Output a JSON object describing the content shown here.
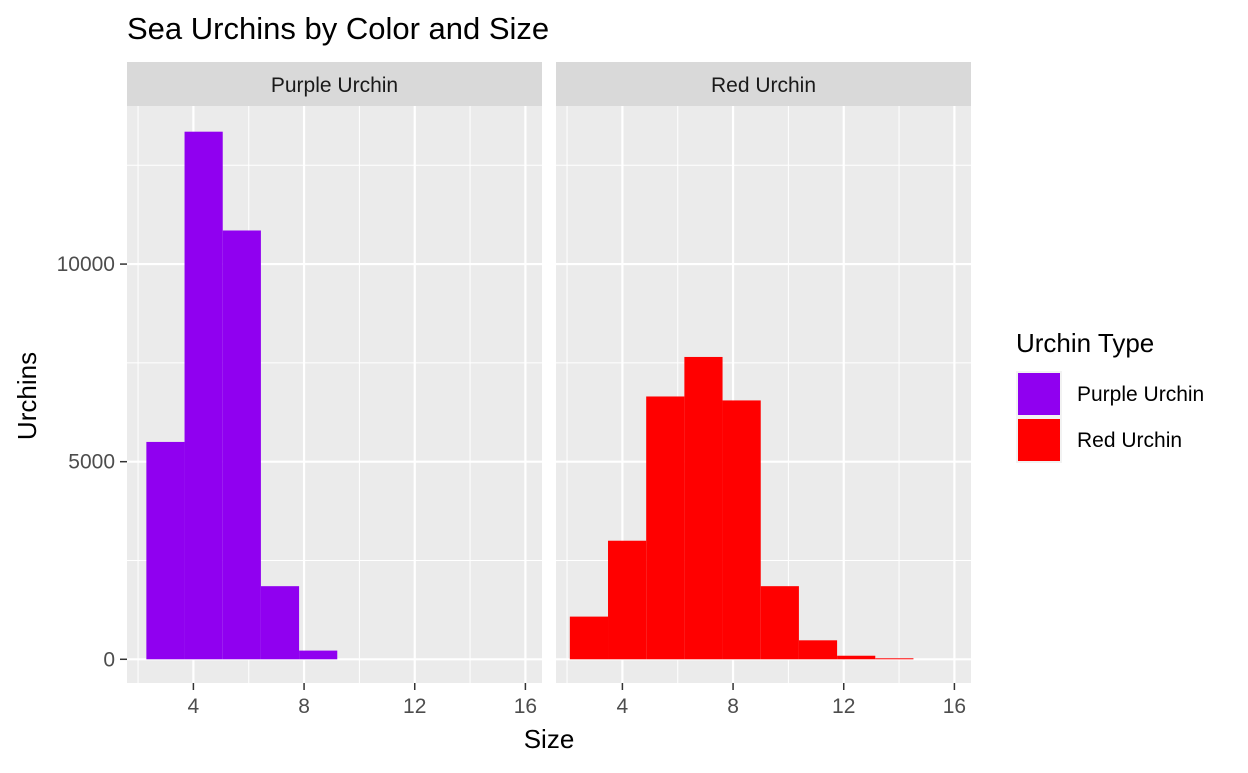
{
  "chart_data": {
    "type": "bar",
    "title": "Sea Urchins by Color and Size",
    "xlabel": "Size",
    "ylabel": "Urchins",
    "xlim": [
      1.6,
      16.6
    ],
    "ylim": [
      -600,
      14000
    ],
    "x_ticks": [
      4,
      8,
      12,
      16
    ],
    "y_ticks": [
      0,
      5000,
      10000
    ],
    "grid": true,
    "legend": {
      "title": "Urchin Type",
      "position": "right",
      "entries": [
        {
          "label": "Purple Urchin",
          "color": "#9000f0"
        },
        {
          "label": "Red Urchin",
          "color": "#ff0000"
        }
      ]
    },
    "panels": [
      {
        "strip": "Purple Urchin",
        "color": "#9000f0",
        "bins": [
          {
            "x0": 2.3,
            "x1": 3.68,
            "count": 5500
          },
          {
            "x0": 3.68,
            "x1": 5.06,
            "count": 13350
          },
          {
            "x0": 5.06,
            "x1": 6.44,
            "count": 10850
          },
          {
            "x0": 6.44,
            "x1": 7.82,
            "count": 1850
          },
          {
            "x0": 7.82,
            "x1": 9.2,
            "count": 220
          }
        ]
      },
      {
        "strip": "Red Urchin",
        "color": "#ff0000",
        "bins": [
          {
            "x0": 2.1,
            "x1": 3.48,
            "count": 1080
          },
          {
            "x0": 3.48,
            "x1": 4.86,
            "count": 3000
          },
          {
            "x0": 4.86,
            "x1": 6.24,
            "count": 6650
          },
          {
            "x0": 6.24,
            "x1": 7.62,
            "count": 7650
          },
          {
            "x0": 7.62,
            "x1": 9.0,
            "count": 6550
          },
          {
            "x0": 9.0,
            "x1": 10.38,
            "count": 1850
          },
          {
            "x0": 10.38,
            "x1": 11.76,
            "count": 480
          },
          {
            "x0": 11.76,
            "x1": 13.14,
            "count": 90
          },
          {
            "x0": 13.14,
            "x1": 14.52,
            "count": 25
          }
        ]
      }
    ]
  }
}
